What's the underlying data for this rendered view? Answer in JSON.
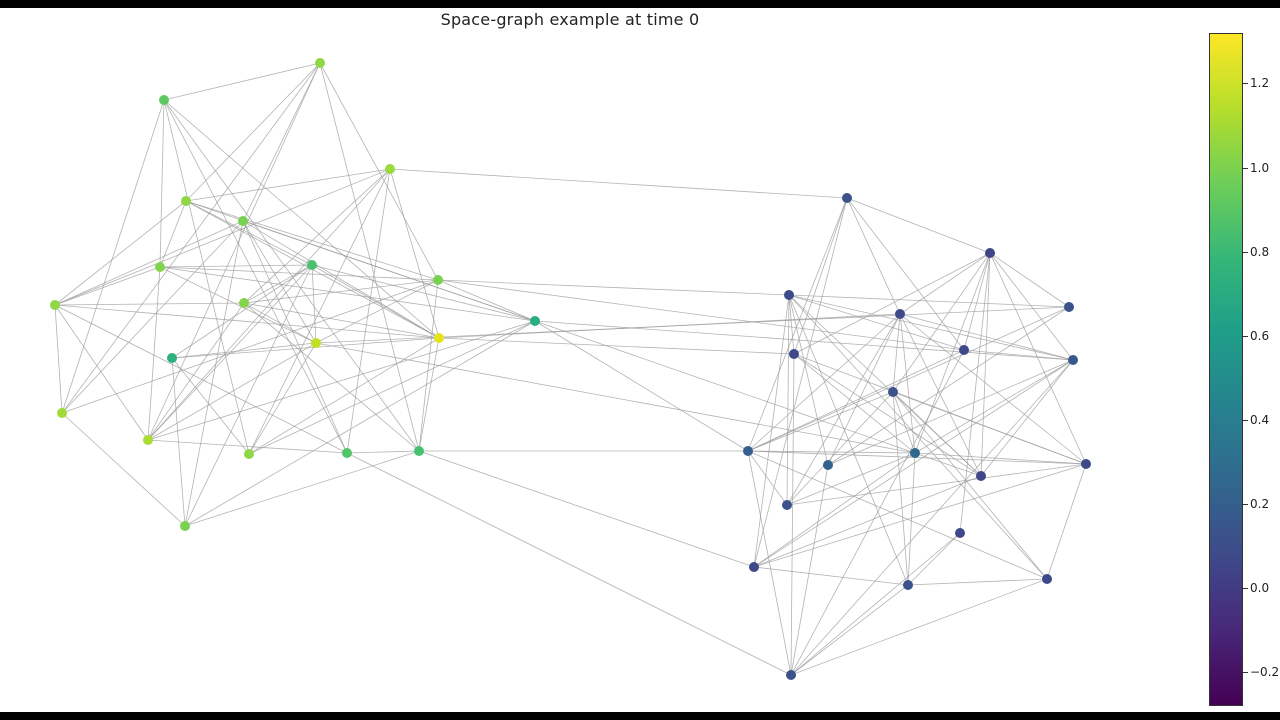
{
  "title": "Space-graph example at time 0",
  "colorbar": {
    "min": -0.28,
    "max": 1.32,
    "ticks": [
      {
        "value": -0.2,
        "label": "−0.2"
      },
      {
        "value": 0.0,
        "label": "0.0"
      },
      {
        "value": 0.2,
        "label": "0.2"
      },
      {
        "value": 0.4,
        "label": "0.4"
      },
      {
        "value": 0.6,
        "label": "0.6"
      },
      {
        "value": 0.8,
        "label": "0.8"
      },
      {
        "value": 1.0,
        "label": "1.0"
      },
      {
        "value": 1.2,
        "label": "1.2"
      }
    ],
    "colormap": [
      "#440154",
      "#482878",
      "#3e4a89",
      "#31688e",
      "#26828e",
      "#1f9e89",
      "#35b779",
      "#6ece58",
      "#b5de2b",
      "#fde725"
    ]
  },
  "edge_color": "#9a9a9a"
}
